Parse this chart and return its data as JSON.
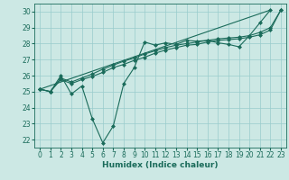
{
  "xlabel": "Humidex (Indice chaleur)",
  "bg_color": "#cce8e4",
  "grid_color": "#99cccc",
  "line_color": "#1a6b5a",
  "xlim": [
    -0.5,
    23.5
  ],
  "ylim": [
    21.5,
    30.5
  ],
  "xticks": [
    0,
    1,
    2,
    3,
    4,
    5,
    6,
    7,
    8,
    9,
    10,
    11,
    12,
    13,
    14,
    15,
    16,
    17,
    18,
    19,
    20,
    21,
    22,
    23
  ],
  "yticks": [
    22,
    23,
    24,
    25,
    26,
    27,
    28,
    29,
    30
  ],
  "series1_x": [
    0,
    1,
    2,
    3,
    4,
    5,
    6,
    7,
    8,
    9,
    10,
    11,
    12,
    13,
    14,
    15,
    16,
    17,
    18,
    19,
    20,
    21,
    22
  ],
  "series1_y": [
    25.15,
    25.0,
    26.0,
    24.85,
    25.35,
    23.3,
    21.8,
    22.85,
    25.5,
    26.5,
    28.1,
    27.9,
    28.05,
    27.95,
    28.2,
    28.15,
    28.2,
    28.05,
    27.95,
    27.8,
    28.5,
    29.3,
    30.1
  ],
  "series2_x": [
    0,
    22
  ],
  "series2_y": [
    25.15,
    30.1
  ],
  "series3_x": [
    0,
    1,
    2,
    3,
    4,
    5,
    6,
    7,
    8,
    9,
    10,
    11,
    12,
    13,
    14,
    15,
    16,
    17,
    18,
    19,
    20,
    21,
    22,
    23
  ],
  "series3_y": [
    25.15,
    25.0,
    25.85,
    25.6,
    25.85,
    26.1,
    26.4,
    26.65,
    26.9,
    27.1,
    27.35,
    27.55,
    27.75,
    27.9,
    28.0,
    28.1,
    28.2,
    28.3,
    28.35,
    28.4,
    28.5,
    28.7,
    29.0,
    30.1
  ],
  "series4_x": [
    0,
    1,
    2,
    3,
    4,
    5,
    6,
    7,
    8,
    9,
    10,
    11,
    12,
    13,
    14,
    15,
    16,
    17,
    18,
    19,
    20,
    21,
    22,
    23
  ],
  "series4_y": [
    25.15,
    25.0,
    25.75,
    25.5,
    25.75,
    25.95,
    26.2,
    26.5,
    26.7,
    26.95,
    27.15,
    27.4,
    27.6,
    27.75,
    27.9,
    27.95,
    28.1,
    28.2,
    28.25,
    28.3,
    28.4,
    28.55,
    28.85,
    30.1
  ]
}
